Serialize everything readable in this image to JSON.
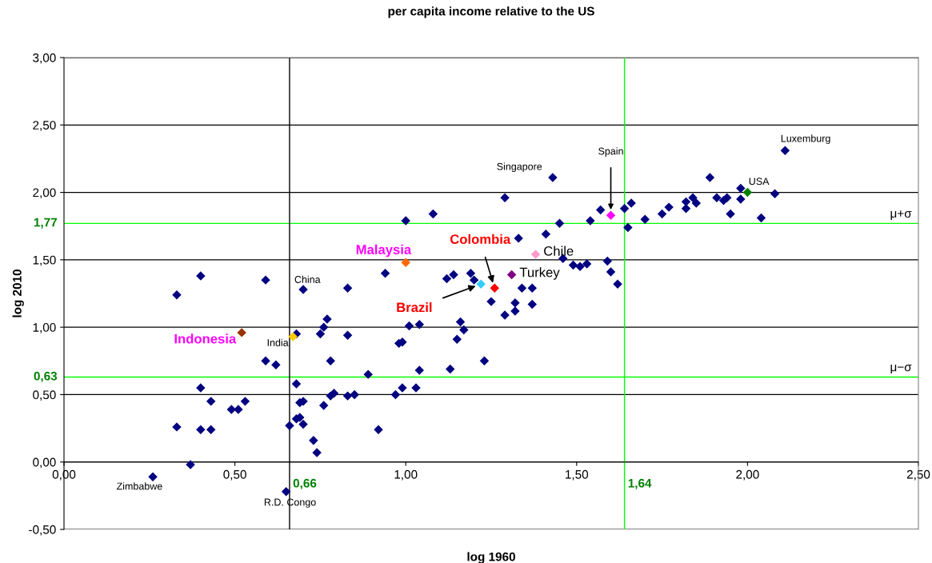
{
  "chart_data": {
    "type": "scatter",
    "title": "per capita income relative to the US",
    "xlabel": "log 1960",
    "ylabel": "log 2010",
    "xlim": [
      0,
      2.5
    ],
    "ylim": [
      -0.5,
      3.0
    ],
    "xticks": [
      {
        "value": 0,
        "label": "0,00"
      },
      {
        "value": 0.5,
        "label": "0,50"
      },
      {
        "value": 1.0,
        "label": "1,00"
      },
      {
        "value": 1.5,
        "label": "1,50"
      },
      {
        "value": 2.0,
        "label": "2,00"
      },
      {
        "value": 2.5,
        "label": "2,50"
      }
    ],
    "yticks": [
      {
        "value": -0.5,
        "label": "-0,50"
      },
      {
        "value": 0,
        "label": "0,00"
      },
      {
        "value": 0.5,
        "label": "0,50"
      },
      {
        "value": 1.0,
        "label": "1,00"
      },
      {
        "value": 1.5,
        "label": "1,50"
      },
      {
        "value": 2.0,
        "label": "2,00"
      },
      {
        "value": 2.5,
        "label": "2,50"
      },
      {
        "value": 3.0,
        "label": "3,00"
      }
    ],
    "grid": "y",
    "legend": false,
    "marker": "diamond",
    "series": [
      {
        "color": "#000080",
        "x": [
          0.33,
          0.33,
          0.37,
          0.4,
          0.4,
          0.4,
          0.43,
          0.43,
          0.49,
          0.51,
          0.53,
          0.59,
          0.59,
          0.62,
          0.66,
          0.68,
          0.68,
          0.68,
          0.69,
          0.7,
          0.69,
          0.7,
          0.77,
          0.76,
          0.75,
          0.83,
          0.83,
          0.78,
          0.89,
          0.78,
          0.79,
          0.83,
          0.85,
          0.76,
          0.73,
          0.74,
          0.94,
          0.92,
          0.97,
          0.99,
          1.03,
          0.98,
          0.99,
          1.01,
          1.04,
          1.04,
          1.13,
          1.15,
          1.16,
          1.17,
          1.23,
          1.12,
          1.14,
          1.19,
          1.2,
          1.25,
          1.29,
          1.08,
          1.0,
          1.45,
          1.33,
          1.41,
          1.46,
          1.49,
          1.34,
          1.37,
          1.32,
          1.37,
          1.29,
          1.32,
          1.57,
          1.64,
          1.66,
          1.54,
          1.65,
          1.7,
          1.75,
          1.77,
          1.82,
          1.82,
          1.84,
          1.85,
          1.89,
          1.91,
          1.93,
          1.94,
          1.95,
          1.98,
          1.98,
          2.04,
          2.08,
          1.51,
          1.53,
          1.59,
          1.6,
          1.62
        ],
        "values": [
          1.24,
          0.26,
          -0.02,
          1.38,
          0.55,
          0.24,
          0.45,
          0.24,
          0.39,
          0.39,
          0.45,
          1.35,
          0.75,
          0.72,
          0.27,
          0.95,
          0.58,
          0.32,
          0.33,
          0.28,
          0.44,
          0.45,
          1.06,
          1.0,
          0.95,
          0.94,
          1.29,
          0.75,
          0.65,
          0.49,
          0.51,
          0.49,
          0.5,
          0.42,
          0.16,
          0.07,
          1.4,
          0.24,
          0.5,
          0.55,
          0.55,
          0.88,
          0.89,
          1.01,
          1.02,
          0.68,
          0.69,
          0.91,
          1.04,
          0.98,
          0.75,
          1.36,
          1.39,
          1.4,
          1.35,
          1.19,
          1.96,
          1.84,
          1.79,
          1.77,
          1.66,
          1.69,
          1.51,
          1.46,
          1.29,
          1.29,
          1.18,
          1.17,
          1.09,
          1.12,
          1.87,
          1.88,
          1.92,
          1.79,
          1.74,
          1.8,
          1.84,
          1.89,
          1.93,
          1.88,
          1.96,
          1.92,
          2.11,
          1.96,
          1.94,
          1.96,
          1.84,
          2.03,
          1.95,
          1.81,
          1.99,
          1.45,
          1.47,
          1.49,
          1.41,
          1.32
        ]
      },
      {
        "color": "#000080",
        "x": [
          0.26,
          0.65,
          0.7,
          1.43,
          2.11
        ],
        "values": [
          -0.11,
          -0.22,
          1.28,
          2.11,
          2.31
        ]
      },
      {
        "color": "#ffcc00",
        "x": [
          0.67
        ],
        "values": [
          0.93
        ]
      },
      {
        "color": "#993300",
        "x": [
          0.52
        ],
        "values": [
          0.96
        ]
      },
      {
        "color": "#ff6600",
        "x": [
          1.0
        ],
        "values": [
          1.48
        ]
      },
      {
        "color": "#33ccff",
        "x": [
          1.22
        ],
        "values": [
          1.32
        ]
      },
      {
        "color": "#ff0000",
        "x": [
          1.26
        ],
        "values": [
          1.29
        ]
      },
      {
        "color": "#ff99cc",
        "x": [
          1.38
        ],
        "values": [
          1.54
        ]
      },
      {
        "color": "#800080",
        "x": [
          1.31
        ],
        "values": [
          1.39
        ]
      },
      {
        "color": "#ff00ff",
        "x": [
          1.6
        ],
        "values": [
          1.83
        ]
      },
      {
        "color": "#008000",
        "x": [
          2.0
        ],
        "values": [
          2.0
        ]
      }
    ],
    "ref_lines": [
      {
        "axis": "y",
        "value": 1.77,
        "label": "1,77",
        "color": "#00ff00"
      },
      {
        "axis": "y",
        "value": 0.63,
        "label": "0,63",
        "color": "#00ff00"
      },
      {
        "axis": "x",
        "value": 1.64,
        "label": "1,64",
        "color": "#00ff00"
      },
      {
        "axis": "x",
        "value": 0.66,
        "label": "0,66",
        "color": "#000000"
      }
    ],
    "annotations": [
      {
        "text": "μ+σ",
        "x": 2.5,
        "y": 1.77
      },
      {
        "text": "μ−σ",
        "x": 2.5,
        "y": 0.63
      },
      {
        "text": "Zimbabwe",
        "x": 0.26,
        "y": -0.11
      },
      {
        "text": "R.D. Congo",
        "x": 0.65,
        "y": -0.22
      },
      {
        "text": "China",
        "x": 0.7,
        "y": 1.28
      },
      {
        "text": "India",
        "x": 0.67,
        "y": 0.93
      },
      {
        "text": "Indonesia",
        "x": 0.52,
        "y": 0.96
      },
      {
        "text": "Malaysia",
        "x": 1.0,
        "y": 1.48
      },
      {
        "text": "Brazil",
        "x": 1.22,
        "y": 1.32
      },
      {
        "text": "Colombia",
        "x": 1.26,
        "y": 1.29
      },
      {
        "text": "Chile",
        "x": 1.38,
        "y": 1.54
      },
      {
        "text": "Turkey",
        "x": 1.31,
        "y": 1.39
      },
      {
        "text": "Singapore",
        "x": 1.43,
        "y": 2.11
      },
      {
        "text": "Spain",
        "x": 1.6,
        "y": 1.83
      },
      {
        "text": "USA",
        "x": 2.0,
        "y": 2.0
      },
      {
        "text": "Luxemburg",
        "x": 2.11,
        "y": 2.31
      }
    ]
  }
}
